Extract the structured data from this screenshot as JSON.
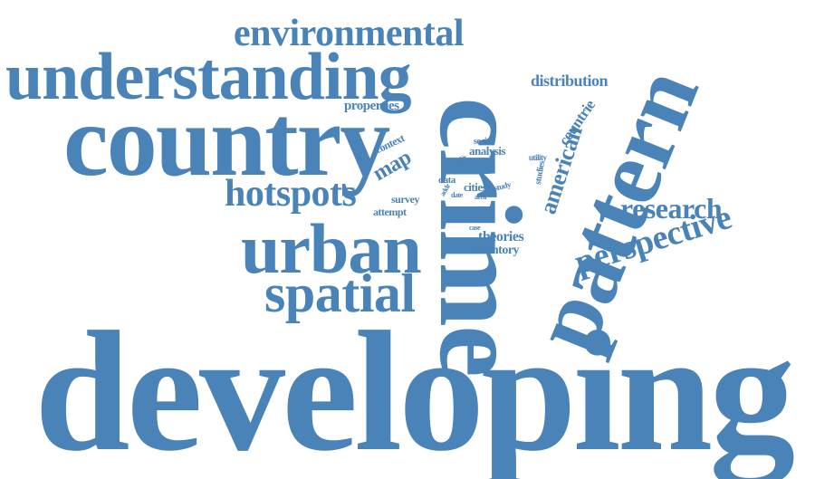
{
  "accent_color": "#4a83b8",
  "background_color": "#ffffff",
  "words": {
    "developing": "developing",
    "crime": "crime",
    "country": "country",
    "understanding": "understanding",
    "pattern": "pattern",
    "urban": "urban",
    "spatial": "spatial",
    "hotspots": "hotspots",
    "environmental": "environmental",
    "perspective": "perspective",
    "research": "research",
    "american": "american",
    "distribution": "distribution",
    "properties": "properties",
    "map": "map",
    "countrie": "countrie",
    "theories": "theories",
    "inventory": "inventory",
    "analysis": "analysis",
    "cities": "cities",
    "social": "social",
    "context": "context",
    "studies": "studies",
    "survey": "survey",
    "attempt": "attempt",
    "data": "data",
    "utility": "utility",
    "block": "block",
    "study": "study",
    "addr": "addr",
    "date": "date",
    "area": "area",
    "case": "case"
  }
}
